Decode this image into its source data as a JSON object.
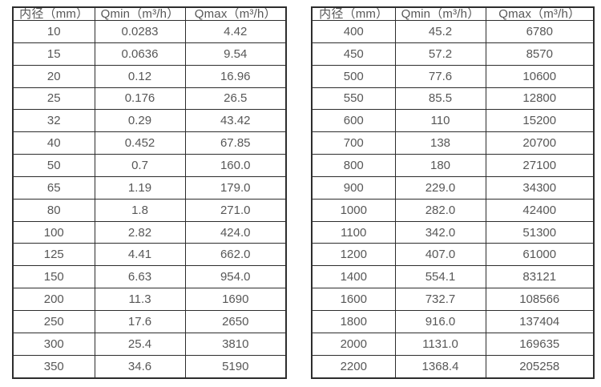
{
  "style": {
    "border_color": "#2d2d2d",
    "text_color": "#575757",
    "background_color": "#ffffff"
  },
  "tables": [
    {
      "name": "flow-spec-table-small-diameters",
      "headers": [
        "内径（mm）",
        "Qmin（m³/h）",
        "Qmax（m³/h）"
      ],
      "rows": [
        [
          "10",
          "0.0283",
          "4.42"
        ],
        [
          "15",
          "0.0636",
          "9.54"
        ],
        [
          "20",
          "0.12",
          "16.96"
        ],
        [
          "25",
          "0.176",
          "26.5"
        ],
        [
          "32",
          "0.29",
          "43.42"
        ],
        [
          "40",
          "0.452",
          "67.85"
        ],
        [
          "50",
          "0.7",
          "160.0"
        ],
        [
          "65",
          "1.19",
          "179.0"
        ],
        [
          "80",
          "1.8",
          "271.0"
        ],
        [
          "100",
          "2.82",
          "424.0"
        ],
        [
          "125",
          "4.41",
          "662.0"
        ],
        [
          "150",
          "6.63",
          "954.0"
        ],
        [
          "200",
          "11.3",
          "1690"
        ],
        [
          "250",
          "17.6",
          "2650"
        ],
        [
          "300",
          "25.4",
          "3810"
        ],
        [
          "350",
          "34.6",
          "5190"
        ]
      ]
    },
    {
      "name": "flow-spec-table-large-diameters",
      "headers": [
        "内径（mm）",
        "Qmin（m³/h）",
        "Qmax（m³/h）"
      ],
      "rows": [
        [
          "400",
          "45.2",
          "6780"
        ],
        [
          "450",
          "57.2",
          "8570"
        ],
        [
          "500",
          "77.6",
          "10600"
        ],
        [
          "550",
          "85.5",
          "12800"
        ],
        [
          "600",
          "110",
          "15200"
        ],
        [
          "700",
          "138",
          "20700"
        ],
        [
          "800",
          "180",
          "27100"
        ],
        [
          "900",
          "229.0",
          "34300"
        ],
        [
          "1000",
          "282.0",
          "42400"
        ],
        [
          "1100",
          "342.0",
          "51300"
        ],
        [
          "1200",
          "407.0",
          "61000"
        ],
        [
          "1400",
          "554.1",
          "83121"
        ],
        [
          "1600",
          "732.7",
          "108566"
        ],
        [
          "1800",
          "916.0",
          "137404"
        ],
        [
          "2000",
          "1131.0",
          "169635"
        ],
        [
          "2200",
          "1368.4",
          "205258"
        ]
      ]
    }
  ]
}
